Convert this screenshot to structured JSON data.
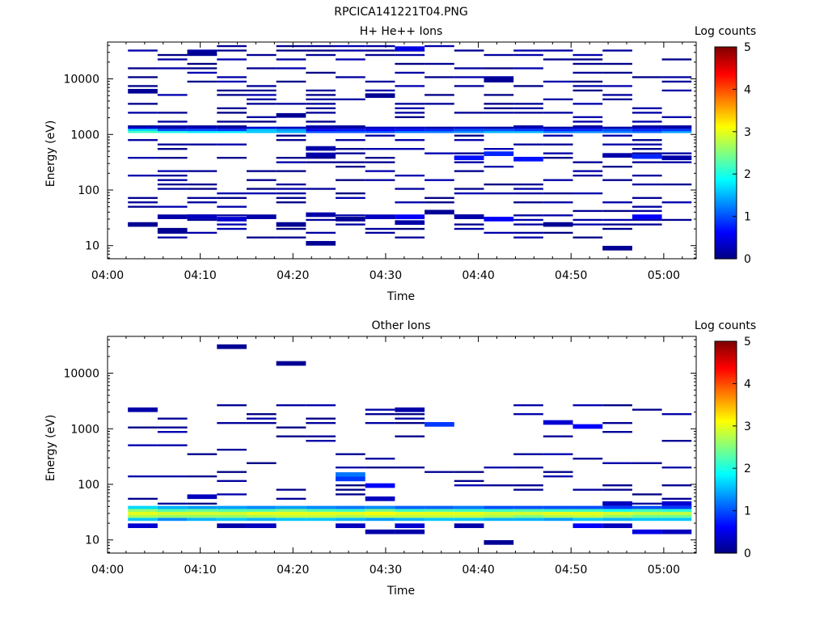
{
  "figure_title": "RPCICA141221T04.PNG",
  "colormap": [
    "#000080",
    "#0000ff",
    "#0080ff",
    "#00ffff",
    "#80ff80",
    "#ffff00",
    "#ff8000",
    "#ff0000",
    "#800000"
  ],
  "chart_data": [
    {
      "type": "heatmap",
      "title": "H+ He++ Ions",
      "xlabel": "Time",
      "ylabel": "Energy (eV)",
      "x_ticks": [
        "04:00",
        "04:10",
        "04:20",
        "04:30",
        "04:40",
        "04:50",
        "05:00"
      ],
      "x_tick_minutes": [
        0,
        10,
        20,
        30,
        40,
        50,
        60
      ],
      "x_range_minutes": [
        0,
        63.5
      ],
      "y_scale": "log",
      "y_range": [
        5.8,
        46000
      ],
      "y_ticks": [
        "10",
        "100",
        "1000",
        "10000"
      ],
      "y_tick_values": [
        10,
        100,
        1000,
        10000
      ],
      "colorbar": {
        "label": "Log counts",
        "range": [
          0,
          5
        ],
        "ticks": [
          "0",
          "1",
          "2",
          "3",
          "4",
          "5"
        ],
        "tick_values": [
          0,
          1,
          2,
          3,
          4,
          5
        ]
      },
      "bin_minutes": 3.2,
      "bin_starts_minutes": [
        2.2,
        5.4,
        8.6,
        11.8,
        15.0,
        18.2,
        21.4,
        24.6,
        27.8,
        31.0,
        34.2,
        37.4,
        40.6,
        43.8,
        47.0,
        50.2,
        53.4,
        56.6,
        59.8
      ],
      "bands": [
        {
          "e_low": 1060,
          "e_high": 1150,
          "counts": [
            2.2,
            2.0,
            1.8,
            1.8,
            1.6,
            1.5,
            1.0,
            1.0,
            1.0,
            1.2,
            1.2,
            1.3,
            1.5,
            1.5,
            1.2,
            1.3,
            1.2,
            1.1,
            1.4
          ]
        },
        {
          "e_low": 1150,
          "e_high": 1260,
          "counts": [
            1.7,
            1.0,
            1.0,
            0.9,
            1.6,
            1.4,
            0.6,
            0.7,
            0.6,
            0.7,
            0.8,
            1.0,
            1.0,
            0.9,
            0.8,
            0.8,
            1.0,
            0.8,
            0.9
          ]
        },
        {
          "e_low": 1260,
          "e_high": 1380,
          "counts": [
            0.4,
            0.2,
            0.3,
            0.2,
            0.4,
            0.3,
            0.2,
            0.2,
            0.3,
            0.3,
            0.2,
            0.3,
            0.2,
            0.3,
            0.2,
            0.3,
            0.2,
            0.3,
            0.2
          ]
        }
      ],
      "sparse_bins": [
        {
          "e": 24,
          "col": 0,
          "v": 0.1
        },
        {
          "e": 18,
          "col": 1,
          "v": 0.1
        },
        {
          "e": 33,
          "col": 1,
          "v": 0.2
        },
        {
          "e": 33,
          "col": 2,
          "v": 0.3
        },
        {
          "e": 30,
          "col": 3,
          "v": 0.4
        },
        {
          "e": 33,
          "col": 4,
          "v": 0.2
        },
        {
          "e": 24,
          "col": 5,
          "v": 0.1
        },
        {
          "e": 11,
          "col": 6,
          "v": 0.1
        },
        {
          "e": 36,
          "col": 6,
          "v": 0.2
        },
        {
          "e": 30,
          "col": 7,
          "v": 0.1
        },
        {
          "e": 33,
          "col": 8,
          "v": 0.3
        },
        {
          "e": 33,
          "col": 9,
          "v": 0.6
        },
        {
          "e": 26,
          "col": 9,
          "v": 0.2
        },
        {
          "e": 40,
          "col": 10,
          "v": 0.1
        },
        {
          "e": 33,
          "col": 11,
          "v": 0.2
        },
        {
          "e": 30,
          "col": 12,
          "v": 0.6
        },
        {
          "e": 24,
          "col": 14,
          "v": 0.1
        },
        {
          "e": 9,
          "col": 16,
          "v": 0.1
        },
        {
          "e": 33,
          "col": 17,
          "v": 0.6
        },
        {
          "e": 430,
          "col": 6,
          "v": 0.2
        },
        {
          "e": 560,
          "col": 6,
          "v": 0.2
        },
        {
          "e": 380,
          "col": 11,
          "v": 0.7
        },
        {
          "e": 450,
          "col": 12,
          "v": 0.8
        },
        {
          "e": 360,
          "col": 13,
          "v": 0.7
        },
        {
          "e": 420,
          "col": 16,
          "v": 0.2
        },
        {
          "e": 400,
          "col": 17,
          "v": 0.8
        },
        {
          "e": 380,
          "col": 18,
          "v": 0.2
        },
        {
          "e": 29000,
          "col": 2,
          "v": 0.1
        },
        {
          "e": 6000,
          "col": 0,
          "v": 0.1
        },
        {
          "e": 9500,
          "col": 12,
          "v": 0.1
        },
        {
          "e": 2200,
          "col": 5,
          "v": 0.1
        },
        {
          "e": 5000,
          "col": 8,
          "v": 0.1
        },
        {
          "e": 35000,
          "col": 9,
          "v": 0.5
        }
      ],
      "sparse_fill": {
        "energy_levels": [
          14,
          17,
          20,
          24,
          29,
          35,
          42,
          50,
          60,
          72,
          87,
          105,
          126,
          151,
          182,
          219,
          263,
          316,
          380,
          457,
          549,
          660,
          793,
          953,
          1400,
          1700,
          2050,
          2460,
          2960,
          3560,
          4280,
          5140,
          6180,
          7430,
          8930,
          10730,
          12900,
          15500,
          18630,
          22390,
          26900,
          32340,
          38870
        ],
        "density": 0.34,
        "max": 0.25
      }
    },
    {
      "type": "heatmap",
      "title": "Other Ions",
      "xlabel": "Time",
      "ylabel": "Energy (eV)",
      "x_ticks": [
        "04:00",
        "04:10",
        "04:20",
        "04:30",
        "04:40",
        "04:50",
        "05:00"
      ],
      "x_tick_minutes": [
        0,
        10,
        20,
        30,
        40,
        50,
        60
      ],
      "x_range_minutes": [
        0,
        63.5
      ],
      "y_scale": "log",
      "y_range": [
        5.8,
        46000
      ],
      "y_ticks": [
        "10",
        "100",
        "1000",
        "10000"
      ],
      "y_tick_values": [
        10,
        100,
        1000,
        10000
      ],
      "colorbar": {
        "label": "Log counts",
        "range": [
          0,
          5
        ],
        "ticks": [
          "0",
          "1",
          "2",
          "3",
          "4",
          "5"
        ],
        "tick_values": [
          0,
          1,
          2,
          3,
          4,
          5
        ]
      },
      "bin_minutes": 3.2,
      "bin_starts_minutes": [
        2.2,
        5.4,
        8.6,
        11.8,
        15.0,
        18.2,
        21.4,
        24.6,
        27.8,
        31.0,
        34.2,
        37.4,
        40.6,
        43.8,
        47.0,
        50.2,
        53.4,
        56.6,
        59.8
      ],
      "bands": [
        {
          "e_low": 22,
          "e_high": 25,
          "counts": [
            1.6,
            1.3,
            1.5,
            1.6,
            1.5,
            1.6,
            1.6,
            1.5,
            1.4,
            1.5,
            1.6,
            1.6,
            1.5,
            1.5,
            1.4,
            1.6,
            1.5,
            1.6,
            1.6
          ]
        },
        {
          "e_low": 25,
          "e_high": 28,
          "counts": [
            2.7,
            2.6,
            2.6,
            2.6,
            2.7,
            2.8,
            2.8,
            2.7,
            2.8,
            2.8,
            2.8,
            2.8,
            2.7,
            2.5,
            2.7,
            2.8,
            2.6,
            2.4,
            2.4
          ]
        },
        {
          "e_low": 28,
          "e_high": 32,
          "counts": [
            3.0,
            2.9,
            2.9,
            2.9,
            3.0,
            3.0,
            3.0,
            3.0,
            3.1,
            3.0,
            3.0,
            3.0,
            2.9,
            2.9,
            3.0,
            3.0,
            2.9,
            2.8,
            2.8
          ]
        },
        {
          "e_low": 32,
          "e_high": 36,
          "counts": [
            2.6,
            2.3,
            2.4,
            2.3,
            2.3,
            2.5,
            2.3,
            2.2,
            2.5,
            2.2,
            2.3,
            2.2,
            2.2,
            2.3,
            2.2,
            2.2,
            2.0,
            2.2,
            2.1
          ]
        },
        {
          "e_low": 36,
          "e_high": 41,
          "counts": [
            1.7,
            1.5,
            1.4,
            1.4,
            1.3,
            1.4,
            1.3,
            1.2,
            1.3,
            1.1,
            1.1,
            1.2,
            1.0,
            1.0,
            1.0,
            1.0,
            0.9,
            1.0,
            0.9
          ]
        }
      ],
      "sparse_bins": [
        {
          "e": 18,
          "col": 0,
          "v": 0.4
        },
        {
          "e": 18,
          "col": 3,
          "v": 0.2
        },
        {
          "e": 18,
          "col": 4,
          "v": 0.3
        },
        {
          "e": 18,
          "col": 7,
          "v": 0.3
        },
        {
          "e": 18,
          "col": 9,
          "v": 0.4
        },
        {
          "e": 18,
          "col": 11,
          "v": 0.2
        },
        {
          "e": 18,
          "col": 15,
          "v": 0.6
        },
        {
          "e": 18,
          "col": 16,
          "v": 0.3
        },
        {
          "e": 14,
          "col": 8,
          "v": 0.2
        },
        {
          "e": 14,
          "col": 9,
          "v": 0.2
        },
        {
          "e": 14,
          "col": 17,
          "v": 0.5
        },
        {
          "e": 14,
          "col": 18,
          "v": 0.3
        },
        {
          "e": 9,
          "col": 12,
          "v": 0.1
        },
        {
          "e": 150,
          "col": 7,
          "v": 1.2
        },
        {
          "e": 125,
          "col": 7,
          "v": 0.9
        },
        {
          "e": 95,
          "col": 8,
          "v": 0.6
        },
        {
          "e": 1200,
          "col": 10,
          "v": 0.9
        },
        {
          "e": 1300,
          "col": 14,
          "v": 0.4
        },
        {
          "e": 1100,
          "col": 15,
          "v": 0.6
        },
        {
          "e": 2200,
          "col": 0,
          "v": 0.2
        },
        {
          "e": 2200,
          "col": 9,
          "v": 0.2
        },
        {
          "e": 30000,
          "col": 3,
          "v": 0.1
        },
        {
          "e": 15000,
          "col": 5,
          "v": 0.1
        },
        {
          "e": 60,
          "col": 2,
          "v": 0.3
        },
        {
          "e": 55,
          "col": 8,
          "v": 0.3
        },
        {
          "e": 45,
          "col": 16,
          "v": 0.3
        },
        {
          "e": 45,
          "col": 18,
          "v": 0.4
        }
      ],
      "sparse_fill": {
        "energy_levels": [
          45,
          55,
          66,
          80,
          96,
          115,
          139,
          167,
          201,
          241,
          290,
          349,
          420,
          505,
          607,
          730,
          878,
          1056,
          1269,
          1525,
          1834,
          2205,
          2650
        ],
        "density": 0.22,
        "max": 0.25
      }
    }
  ]
}
